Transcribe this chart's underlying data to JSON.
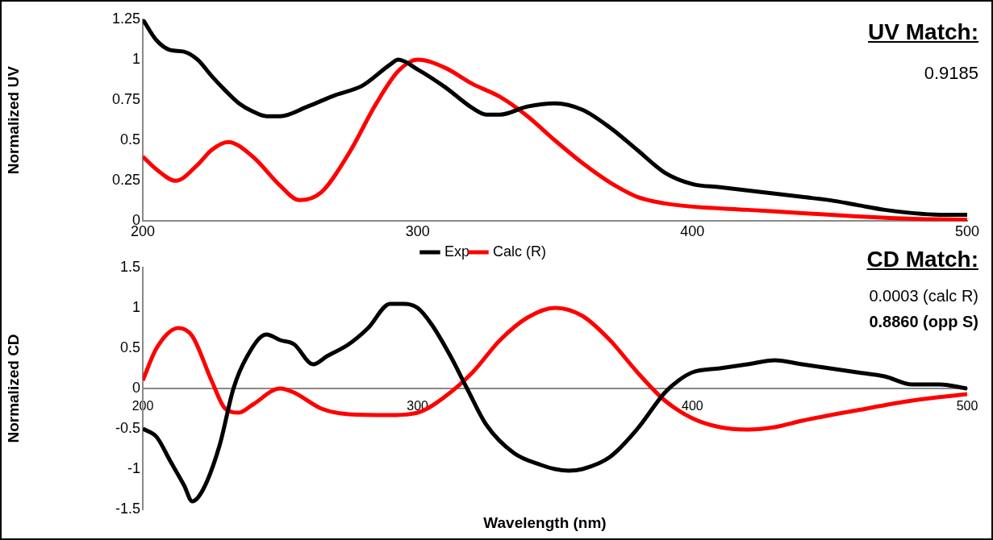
{
  "chart_data": [
    {
      "type": "line",
      "ylabel": "Normalized UV",
      "xlim": [
        200,
        500
      ],
      "xticks": [
        200,
        300,
        400,
        500
      ],
      "ylim": [
        0,
        1.25
      ],
      "yticks": [
        0,
        0.25,
        0.5,
        0.75,
        1,
        1.25
      ],
      "legend": false,
      "marker": "none",
      "line_style": "solid",
      "annotations": [
        "UV Match:",
        "0.9185"
      ],
      "series": [
        {
          "color": "#000000",
          "x": [
            200,
            205,
            210,
            215,
            220,
            225,
            230,
            235,
            240,
            245,
            250,
            260,
            270,
            280,
            290,
            293,
            300,
            310,
            320,
            325,
            330,
            340,
            350,
            360,
            370,
            380,
            390,
            400,
            410,
            420,
            430,
            440,
            450,
            460,
            470,
            480,
            490,
            500
          ],
          "values": [
            1.25,
            1.12,
            1.06,
            1.05,
            1.0,
            0.9,
            0.81,
            0.73,
            0.68,
            0.65,
            0.65,
            0.71,
            0.78,
            0.84,
            0.97,
            1.0,
            0.94,
            0.83,
            0.7,
            0.66,
            0.66,
            0.71,
            0.73,
            0.69,
            0.58,
            0.44,
            0.3,
            0.23,
            0.21,
            0.19,
            0.17,
            0.15,
            0.13,
            0.1,
            0.07,
            0.05,
            0.04,
            0.04
          ]
        },
        {
          "color": "#ff0000",
          "x": [
            200,
            205,
            212,
            220,
            225,
            231,
            240,
            250,
            257,
            265,
            275,
            285,
            293,
            300,
            310,
            320,
            330,
            340,
            350,
            360,
            370,
            380,
            390,
            400,
            420,
            440,
            460,
            480,
            500
          ],
          "values": [
            0.4,
            0.32,
            0.25,
            0.35,
            0.44,
            0.49,
            0.4,
            0.22,
            0.13,
            0.18,
            0.42,
            0.73,
            0.93,
            1.0,
            0.95,
            0.85,
            0.77,
            0.65,
            0.5,
            0.36,
            0.24,
            0.15,
            0.11,
            0.09,
            0.07,
            0.05,
            0.03,
            0.015,
            0.01
          ]
        }
      ]
    },
    {
      "type": "line",
      "ylabel": "Normalized CD",
      "xlabel": "Wavelength (nm)",
      "xlim": [
        200,
        500
      ],
      "xticks": [
        200,
        300,
        400,
        500
      ],
      "ylim": [
        -1.5,
        1.5
      ],
      "yticks": [
        -1.5,
        -1,
        -0.5,
        0,
        0.5,
        1,
        1.5
      ],
      "legend": "top",
      "marker": "none",
      "line_style": "solid",
      "annotations": [
        "CD Match:",
        "0.0003 (calc R)",
        "0.8860 (opp S)"
      ],
      "series": [
        {
          "name": "Exp",
          "color": "#000000",
          "x": [
            200,
            205,
            210,
            215,
            218,
            222,
            228,
            233,
            238,
            245,
            250,
            255,
            262,
            267,
            275,
            282,
            290,
            295,
            300,
            305,
            312,
            318,
            325,
            335,
            345,
            350,
            355,
            360,
            370,
            380,
            390,
            395,
            400,
            410,
            420,
            430,
            440,
            450,
            460,
            470,
            480,
            490,
            500
          ],
          "values": [
            -0.5,
            -0.6,
            -0.9,
            -1.2,
            -1.4,
            -1.25,
            -0.7,
            0.0,
            0.4,
            0.67,
            0.6,
            0.55,
            0.3,
            0.4,
            0.55,
            0.75,
            1.05,
            1.05,
            1.0,
            0.8,
            0.4,
            0.0,
            -0.45,
            -0.8,
            -0.95,
            -1.0,
            -1.02,
            -1.0,
            -0.85,
            -0.5,
            -0.05,
            0.1,
            0.2,
            0.25,
            0.3,
            0.35,
            0.3,
            0.25,
            0.2,
            0.15,
            0.05,
            0.05,
            0.0
          ]
        },
        {
          "name": "Calc (R)",
          "color": "#ff0000",
          "x": [
            200,
            205,
            213,
            218,
            225,
            230,
            235,
            240,
            250,
            255,
            265,
            275,
            290,
            300,
            310,
            320,
            330,
            340,
            350,
            360,
            370,
            380,
            390,
            400,
            410,
            420,
            430,
            440,
            460,
            480,
            500
          ],
          "values": [
            0.1,
            0.5,
            0.75,
            0.65,
            0.1,
            -0.25,
            -0.3,
            -0.2,
            0.0,
            -0.05,
            -0.25,
            -0.32,
            -0.33,
            -0.3,
            -0.1,
            0.2,
            0.6,
            0.88,
            1.0,
            0.9,
            0.6,
            0.2,
            -0.15,
            -0.37,
            -0.48,
            -0.51,
            -0.48,
            -0.4,
            -0.27,
            -0.15,
            -0.07
          ]
        }
      ]
    }
  ]
}
